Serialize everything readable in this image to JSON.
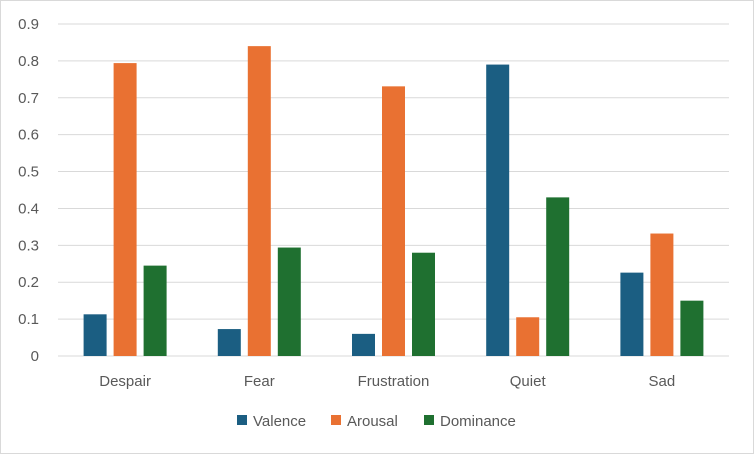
{
  "chart_data": {
    "type": "bar",
    "title": "",
    "xlabel": "",
    "ylabel": "",
    "categories": [
      "Despair",
      "Fear",
      "Frustration",
      "Quiet",
      "Sad"
    ],
    "series": [
      {
        "name": "Valence",
        "color": "#1b5e82",
        "values": [
          0.113,
          0.073,
          0.06,
          0.79,
          0.226
        ]
      },
      {
        "name": "Arousal",
        "color": "#e97132",
        "values": [
          0.794,
          0.84,
          0.731,
          0.105,
          0.332
        ]
      },
      {
        "name": "Dominance",
        "color": "#1f7030",
        "values": [
          0.245,
          0.294,
          0.28,
          0.43,
          0.15
        ]
      }
    ],
    "ylim": [
      0,
      0.9
    ],
    "yticks": [
      "0",
      "0.1",
      "0.2",
      "0.3",
      "0.4",
      "0.5",
      "0.6",
      "0.7",
      "0.8",
      "0.9"
    ],
    "grid": true,
    "legend": "bottom",
    "gridColor": "#d9d9d9"
  }
}
